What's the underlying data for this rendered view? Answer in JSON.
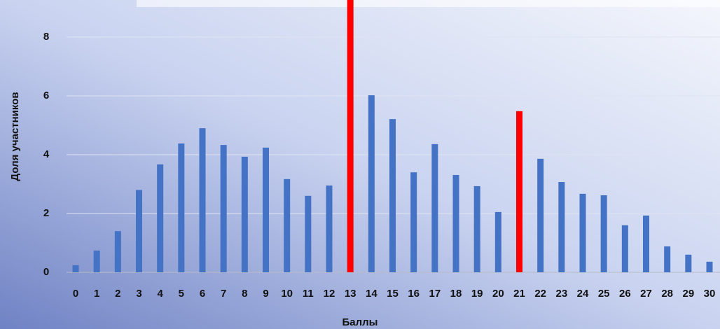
{
  "chart_data": {
    "type": "bar",
    "xlabel": "Баллы",
    "ylabel": "Доля участников",
    "categories": [
      "0",
      "1",
      "2",
      "3",
      "4",
      "5",
      "6",
      "7",
      "8",
      "9",
      "10",
      "11",
      "12",
      "13",
      "14",
      "15",
      "16",
      "17",
      "18",
      "19",
      "20",
      "21",
      "22",
      "23",
      "24",
      "25",
      "26",
      "27",
      "28",
      "29",
      "30"
    ],
    "values": [
      0.24,
      0.74,
      1.4,
      2.8,
      3.67,
      4.38,
      4.9,
      4.33,
      3.93,
      4.24,
      3.17,
      2.6,
      2.95,
      9.3,
      6.02,
      5.21,
      3.4,
      4.36,
      3.31,
      2.93,
      2.05,
      5.48,
      3.86,
      3.07,
      2.67,
      2.62,
      1.6,
      1.93,
      0.88,
      0.6,
      0.36
    ],
    "colors": [
      "#4472c4",
      "#4472c4",
      "#4472c4",
      "#4472c4",
      "#4472c4",
      "#4472c4",
      "#4472c4",
      "#4472c4",
      "#4472c4",
      "#4472c4",
      "#4472c4",
      "#4472c4",
      "#4472c4",
      "#ff0000",
      "#4472c4",
      "#4472c4",
      "#4472c4",
      "#4472c4",
      "#4472c4",
      "#4472c4",
      "#4472c4",
      "#ff0000",
      "#4472c4",
      "#4472c4",
      "#4472c4",
      "#4472c4",
      "#4472c4",
      "#4472c4",
      "#4472c4",
      "#4472c4",
      "#4472c4"
    ],
    "ylim": [
      0,
      9.26
    ],
    "yticks": [
      0,
      2,
      4,
      6,
      8
    ],
    "grid": true
  }
}
